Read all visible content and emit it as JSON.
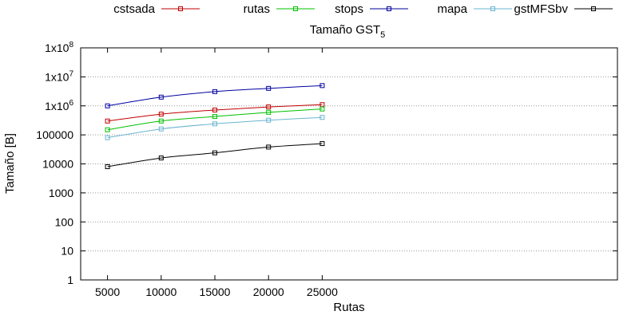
{
  "chart_data": {
    "type": "line",
    "title": "Tamaño GST",
    "title_subscript": "5",
    "xlabel": "Rutas",
    "ylabel": "Tamaño [B]",
    "x": [
      5000,
      10000,
      15000,
      20000,
      25000
    ],
    "xlim": [
      2500,
      52500
    ],
    "x_ticks": [
      5000,
      10000,
      15000,
      20000,
      25000
    ],
    "y_scale": "log",
    "ylim": [
      1,
      100000000
    ],
    "y_ticks": [
      {
        "value": 1,
        "label": "1"
      },
      {
        "value": 10,
        "label": "10"
      },
      {
        "value": 100,
        "label": "100"
      },
      {
        "value": 1000,
        "label": "1000"
      },
      {
        "value": 10000,
        "label": "10000"
      },
      {
        "value": 100000,
        "label": "100000"
      },
      {
        "value": 1000000,
        "label": "1x10",
        "exp": "6"
      },
      {
        "value": 10000000,
        "label": "1x10",
        "exp": "7"
      },
      {
        "value": 100000000,
        "label": "1x10",
        "exp": "8"
      }
    ],
    "grid": true,
    "legend_position": "top",
    "series": [
      {
        "name": "cstsada",
        "color": "#c00000",
        "values": [
          300000,
          520000,
          720000,
          920000,
          1100000
        ]
      },
      {
        "name": "rutas",
        "color": "#00c000",
        "values": [
          150000,
          300000,
          430000,
          600000,
          780000
        ]
      },
      {
        "name": "stops",
        "color": "#0000a0",
        "values": [
          1000000,
          2000000,
          3100000,
          4000000,
          5000000
        ]
      },
      {
        "name": "mapa",
        "color": "#6ab4d0",
        "values": [
          80000,
          160000,
          240000,
          320000,
          400000
        ]
      },
      {
        "name": "gstMFSbv",
        "color": "#000000",
        "values": [
          8000,
          16000,
          24000,
          38000,
          50000
        ]
      }
    ]
  }
}
